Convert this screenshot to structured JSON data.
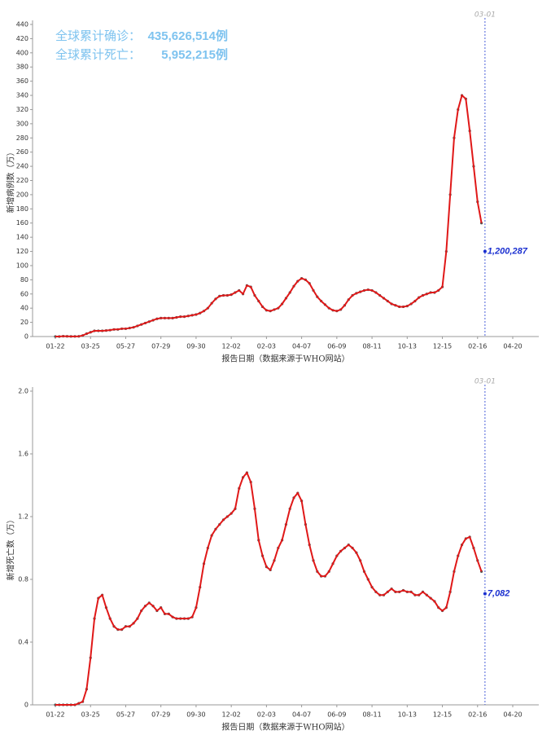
{
  "chart_data": [
    {
      "type": "line",
      "summary": [
        {
          "label": "全球累计确诊：",
          "value": "435,626,514例"
        },
        {
          "label": "全球累计死亡：",
          "value": "5,952,215例"
        }
      ],
      "ylabel": "新增病例数（万）",
      "xlabel": "报告日期（数据来源于WHO网站）",
      "color": "#e01818",
      "marker_color": "#555555",
      "categories": [
        "01-22",
        null,
        null,
        null,
        null,
        null,
        null,
        null,
        null,
        "03-25",
        null,
        null,
        null,
        null,
        null,
        null,
        null,
        null,
        "05-27",
        null,
        null,
        null,
        null,
        null,
        null,
        null,
        null,
        "07-29",
        null,
        null,
        null,
        null,
        null,
        null,
        null,
        null,
        "09-30",
        null,
        null,
        null,
        null,
        null,
        null,
        null,
        null,
        "12-02",
        null,
        null,
        null,
        null,
        null,
        null,
        null,
        null,
        "02-03",
        null,
        null,
        null,
        null,
        null,
        null,
        null,
        null,
        "04-07",
        null,
        null,
        null,
        null,
        null,
        null,
        null,
        null,
        "06-09",
        null,
        null,
        null,
        null,
        null,
        null,
        null,
        null,
        "08-11",
        null,
        null,
        null,
        null,
        null,
        null,
        null,
        null,
        "10-13",
        null,
        null,
        null,
        null,
        null,
        null,
        null,
        null,
        "12-15",
        null,
        null,
        null,
        null,
        null,
        null,
        null,
        null,
        "02-16",
        null,
        null,
        null,
        null,
        null,
        null,
        null,
        null,
        "04-20",
        null,
        null,
        null,
        null,
        null,
        null
      ],
      "values": [
        0,
        0,
        0.5,
        0.3,
        0.2,
        0.2,
        0.3,
        1.5,
        4,
        6,
        8,
        8,
        8,
        8.5,
        9,
        10,
        10,
        11,
        11,
        12,
        13,
        15,
        17,
        19,
        21,
        23,
        25,
        26,
        26,
        26,
        26,
        27,
        28,
        28,
        29,
        30,
        31,
        33,
        36,
        40,
        47,
        53,
        57,
        58,
        58,
        59,
        62,
        65,
        60,
        72,
        70,
        58,
        50,
        42,
        37,
        36,
        38,
        40,
        46,
        54,
        62,
        71,
        78,
        82,
        80,
        75,
        65,
        56,
        50,
        45,
        40,
        37,
        36,
        38,
        44,
        52,
        58,
        61,
        63,
        65,
        66,
        65,
        62,
        58,
        54,
        50,
        46,
        44,
        42,
        42,
        43,
        46,
        50,
        55,
        58,
        60,
        62,
        62,
        65,
        70,
        120,
        200,
        280,
        320,
        340,
        335,
        290,
        240,
        190,
        160,
        null,
        null,
        null,
        null,
        null,
        null,
        null,
        null,
        null,
        null,
        null,
        null,
        null,
        null
      ],
      "ylim": [
        0,
        440
      ],
      "yticks": [
        0,
        20,
        40,
        60,
        80,
        100,
        120,
        140,
        160,
        180,
        200,
        220,
        240,
        260,
        280,
        300,
        320,
        340,
        360,
        380,
        400,
        420,
        440
      ],
      "marker_label": "03-01",
      "latest": {
        "value": 120.0287,
        "label": "1,200,287"
      }
    },
    {
      "type": "line",
      "ylabel": "新增死亡数（万）",
      "xlabel": "报告日期（数据来源于WHO网站）",
      "color": "#e01818",
      "marker_color": "#555555",
      "categories": [
        "01-22",
        null,
        null,
        null,
        null,
        null,
        null,
        null,
        null,
        "03-25",
        null,
        null,
        null,
        null,
        null,
        null,
        null,
        null,
        "05-27",
        null,
        null,
        null,
        null,
        null,
        null,
        null,
        null,
        "07-29",
        null,
        null,
        null,
        null,
        null,
        null,
        null,
        null,
        "09-30",
        null,
        null,
        null,
        null,
        null,
        null,
        null,
        null,
        "12-02",
        null,
        null,
        null,
        null,
        null,
        null,
        null,
        null,
        "02-03",
        null,
        null,
        null,
        null,
        null,
        null,
        null,
        null,
        "04-07",
        null,
        null,
        null,
        null,
        null,
        null,
        null,
        null,
        "06-09",
        null,
        null,
        null,
        null,
        null,
        null,
        null,
        null,
        "08-11",
        null,
        null,
        null,
        null,
        null,
        null,
        null,
        null,
        "10-13",
        null,
        null,
        null,
        null,
        null,
        null,
        null,
        null,
        "12-15",
        null,
        null,
        null,
        null,
        null,
        null,
        null,
        null,
        "02-16",
        null,
        null,
        null,
        null,
        null,
        null,
        null,
        null,
        "04-20",
        null,
        null,
        null,
        null,
        null,
        null
      ],
      "values": [
        0,
        0,
        0,
        0,
        0,
        0,
        0.01,
        0.02,
        0.1,
        0.3,
        0.55,
        0.68,
        0.7,
        0.62,
        0.55,
        0.5,
        0.48,
        0.48,
        0.5,
        0.5,
        0.52,
        0.55,
        0.6,
        0.63,
        0.65,
        0.63,
        0.6,
        0.62,
        0.58,
        0.58,
        0.56,
        0.55,
        0.55,
        0.55,
        0.55,
        0.56,
        0.62,
        0.75,
        0.9,
        1,
        1.08,
        1.12,
        1.15,
        1.18,
        1.2,
        1.22,
        1.25,
        1.38,
        1.45,
        1.48,
        1.42,
        1.25,
        1.05,
        0.95,
        0.88,
        0.86,
        0.92,
        1,
        1.05,
        1.15,
        1.25,
        1.32,
        1.35,
        1.3,
        1.15,
        1.02,
        0.92,
        0.85,
        0.82,
        0.82,
        0.85,
        0.9,
        0.95,
        0.98,
        1,
        1.02,
        1,
        0.97,
        0.92,
        0.85,
        0.8,
        0.75,
        0.72,
        0.7,
        0.7,
        0.72,
        0.74,
        0.72,
        0.72,
        0.73,
        0.72,
        0.72,
        0.7,
        0.7,
        0.72,
        0.7,
        0.68,
        0.66,
        0.62,
        0.6,
        0.62,
        0.72,
        0.85,
        0.95,
        1.02,
        1.06,
        1.07,
        1,
        0.92,
        0.85,
        null,
        null,
        null,
        null,
        null,
        null,
        null,
        null,
        null,
        null,
        null,
        null,
        null,
        null
      ],
      "ylim": [
        0,
        2
      ],
      "yticks": [
        0,
        0.4,
        0.8,
        1.2,
        1.6,
        {
          "value": 2,
          "label": "2.0"
        }
      ],
      "marker_label": "03-01",
      "latest": {
        "value": 0.7082,
        "label": "7,082"
      }
    }
  ]
}
